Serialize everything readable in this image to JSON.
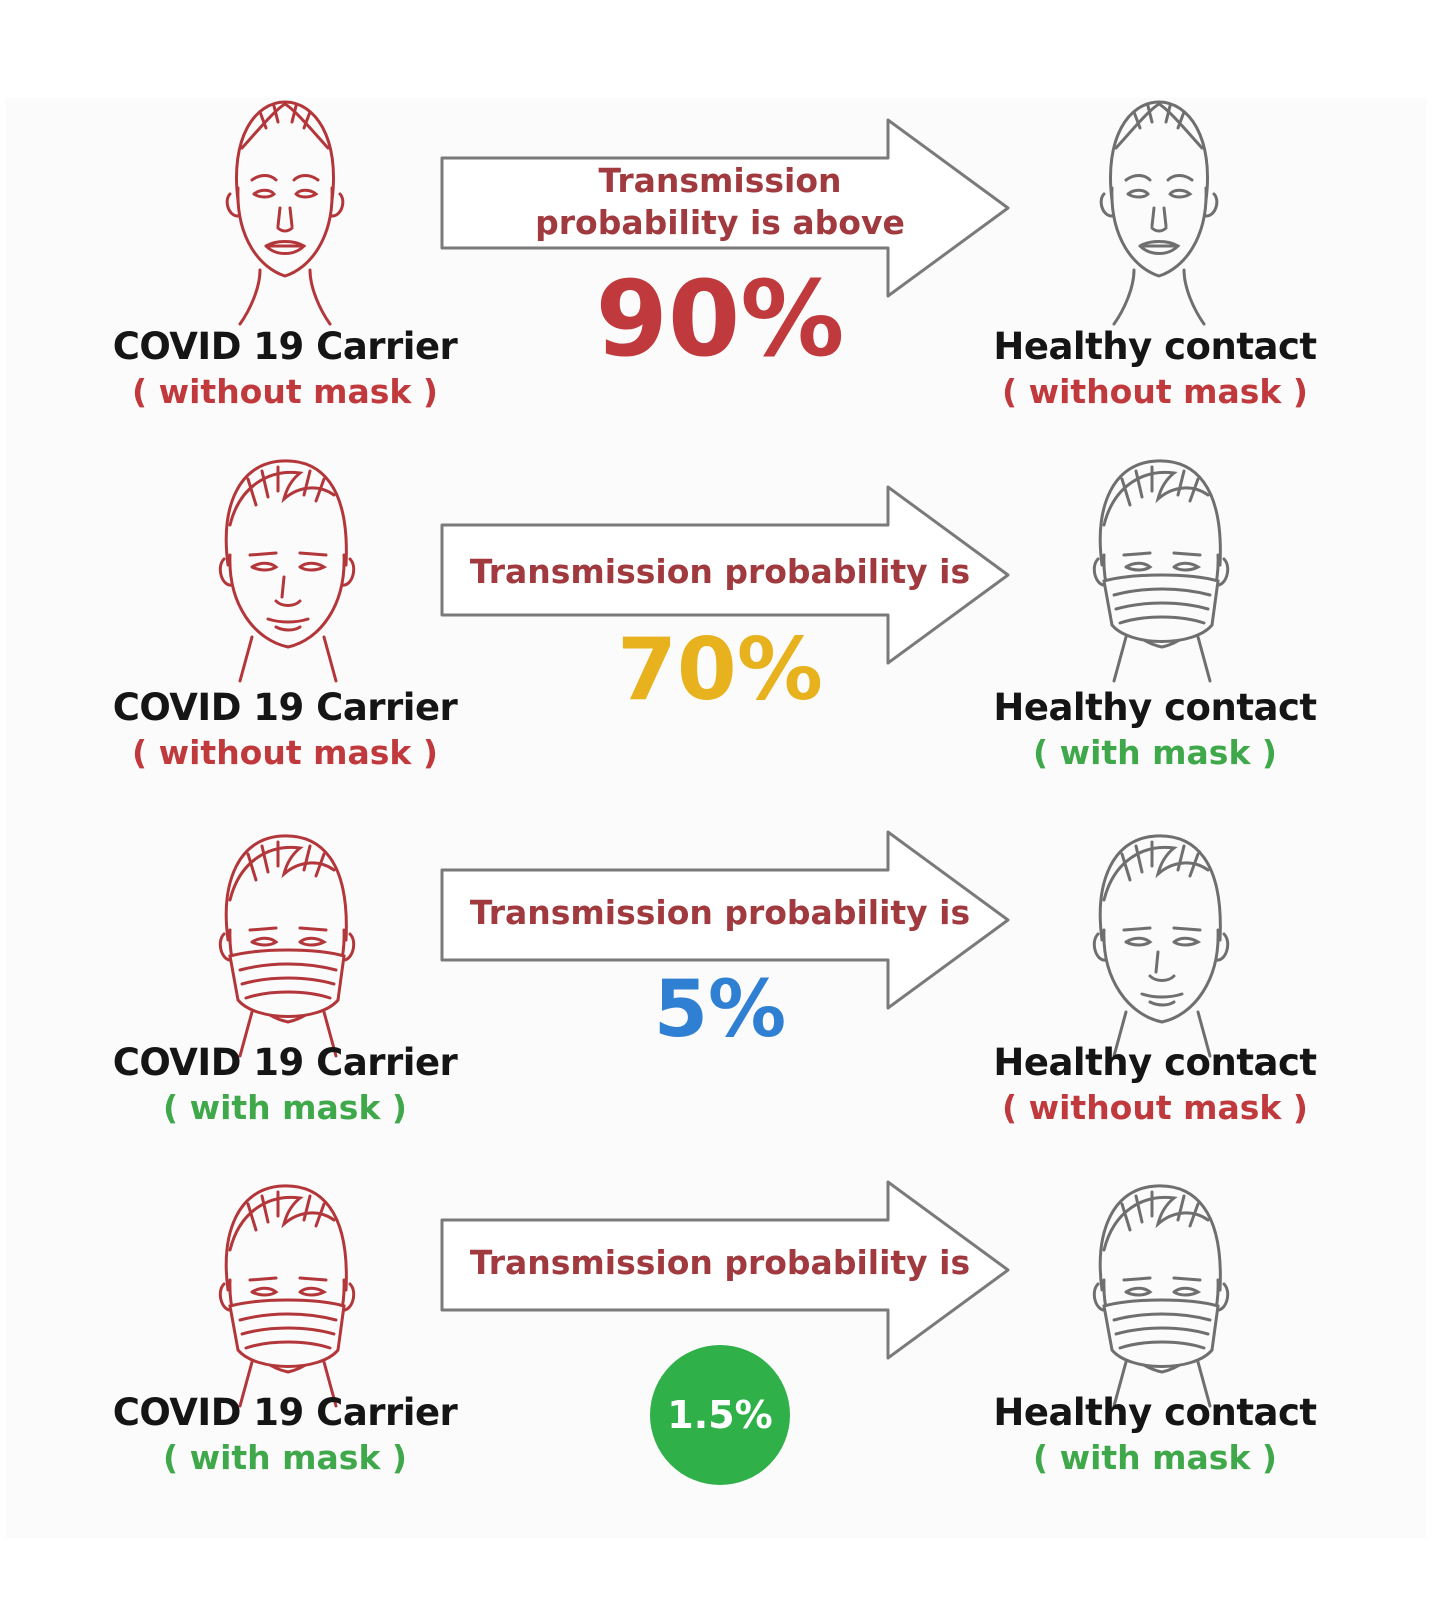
{
  "colors": {
    "carrier_face": "#b3373a",
    "contact_face": "#6f6f6f",
    "red": "#c0393c",
    "green": "#3fa84a",
    "orange": "#e8b21e",
    "blue": "#2f7fd3",
    "badge_green": "#2fb048"
  },
  "rows": [
    {
      "carrier": {
        "role": "COVID 19 Carrier",
        "mask": "( without mask )"
      },
      "contact": {
        "role": "Healthy contact",
        "mask": "( without  mask )"
      },
      "arrow_text_1": "Transmission",
      "arrow_text_2": "probability is above",
      "probability": "90%"
    },
    {
      "carrier": {
        "role": "COVID 19 Carrier",
        "mask": "( without mask )"
      },
      "contact": {
        "role": "Healthy contact",
        "mask": "( with mask )"
      },
      "arrow_text": "Transmission probability is",
      "probability": "70%"
    },
    {
      "carrier": {
        "role": "COVID 19 Carrier",
        "mask": "( with mask )"
      },
      "contact": {
        "role": "Healthy contact",
        "mask": "( without mask )"
      },
      "arrow_text": "Transmission probability is",
      "probability": "5%"
    },
    {
      "carrier": {
        "role": "COVID 19 Carrier",
        "mask": "( with mask )"
      },
      "contact": {
        "role": "Healthy contact",
        "mask": "( with mask )"
      },
      "arrow_text": "Transmission probability is",
      "probability": "1.5%"
    }
  ]
}
